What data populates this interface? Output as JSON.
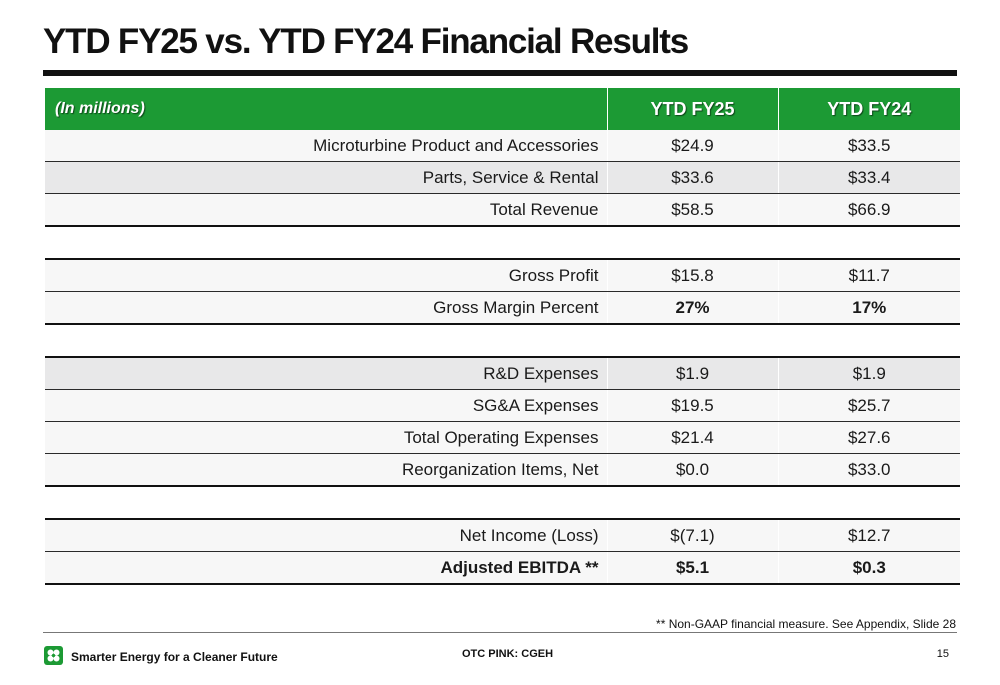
{
  "slide": {
    "title": "YTD FY25 vs. YTD FY24 Financial Results",
    "footnote": "** Non-GAAP financial measure. See Appendix, Slide 28",
    "tagline": "Smarter Energy for a Cleaner Future",
    "ticker": "OTC PINK: CGEH",
    "page_number": "15",
    "accent_color": "#1c9a34",
    "logo_icon": "flower-logo-icon"
  },
  "table": {
    "header": {
      "label": "(In millions)",
      "col1": "YTD FY25",
      "col2": "YTD FY24"
    },
    "rows": [
      {
        "label": "Microturbine Product and Accessories",
        "fy25": "$24.9",
        "fy24": "$33.5"
      },
      {
        "label": "Parts, Service & Rental",
        "fy25": "$33.6",
        "fy24": "$33.4"
      },
      {
        "label": "Total Revenue",
        "fy25": "$58.5",
        "fy24": "$66.9"
      },
      {
        "label": "",
        "fy25": "",
        "fy24": ""
      },
      {
        "label": "Gross Profit",
        "fy25": "$15.8",
        "fy24": "$11.7"
      },
      {
        "label": "Gross Margin Percent",
        "fy25": "27%",
        "fy24": "17%"
      },
      {
        "label": "",
        "fy25": "",
        "fy24": ""
      },
      {
        "label": "R&D Expenses",
        "fy25": "$1.9",
        "fy24": "$1.9"
      },
      {
        "label": "SG&A Expenses",
        "fy25": "$19.5",
        "fy24": "$25.7"
      },
      {
        "label": "Total Operating Expenses",
        "fy25": "$21.4",
        "fy24": "$27.6"
      },
      {
        "label": "Reorganization Items, Net",
        "fy25": "$0.0",
        "fy24": "$33.0"
      },
      {
        "label": "",
        "fy25": "",
        "fy24": ""
      },
      {
        "label": "Net Income (Loss)",
        "fy25": "$(7.1)",
        "fy24": "$12.7"
      },
      {
        "label": "Adjusted EBITDA **",
        "fy25": "$5.1",
        "fy24": "$0.3"
      }
    ]
  }
}
